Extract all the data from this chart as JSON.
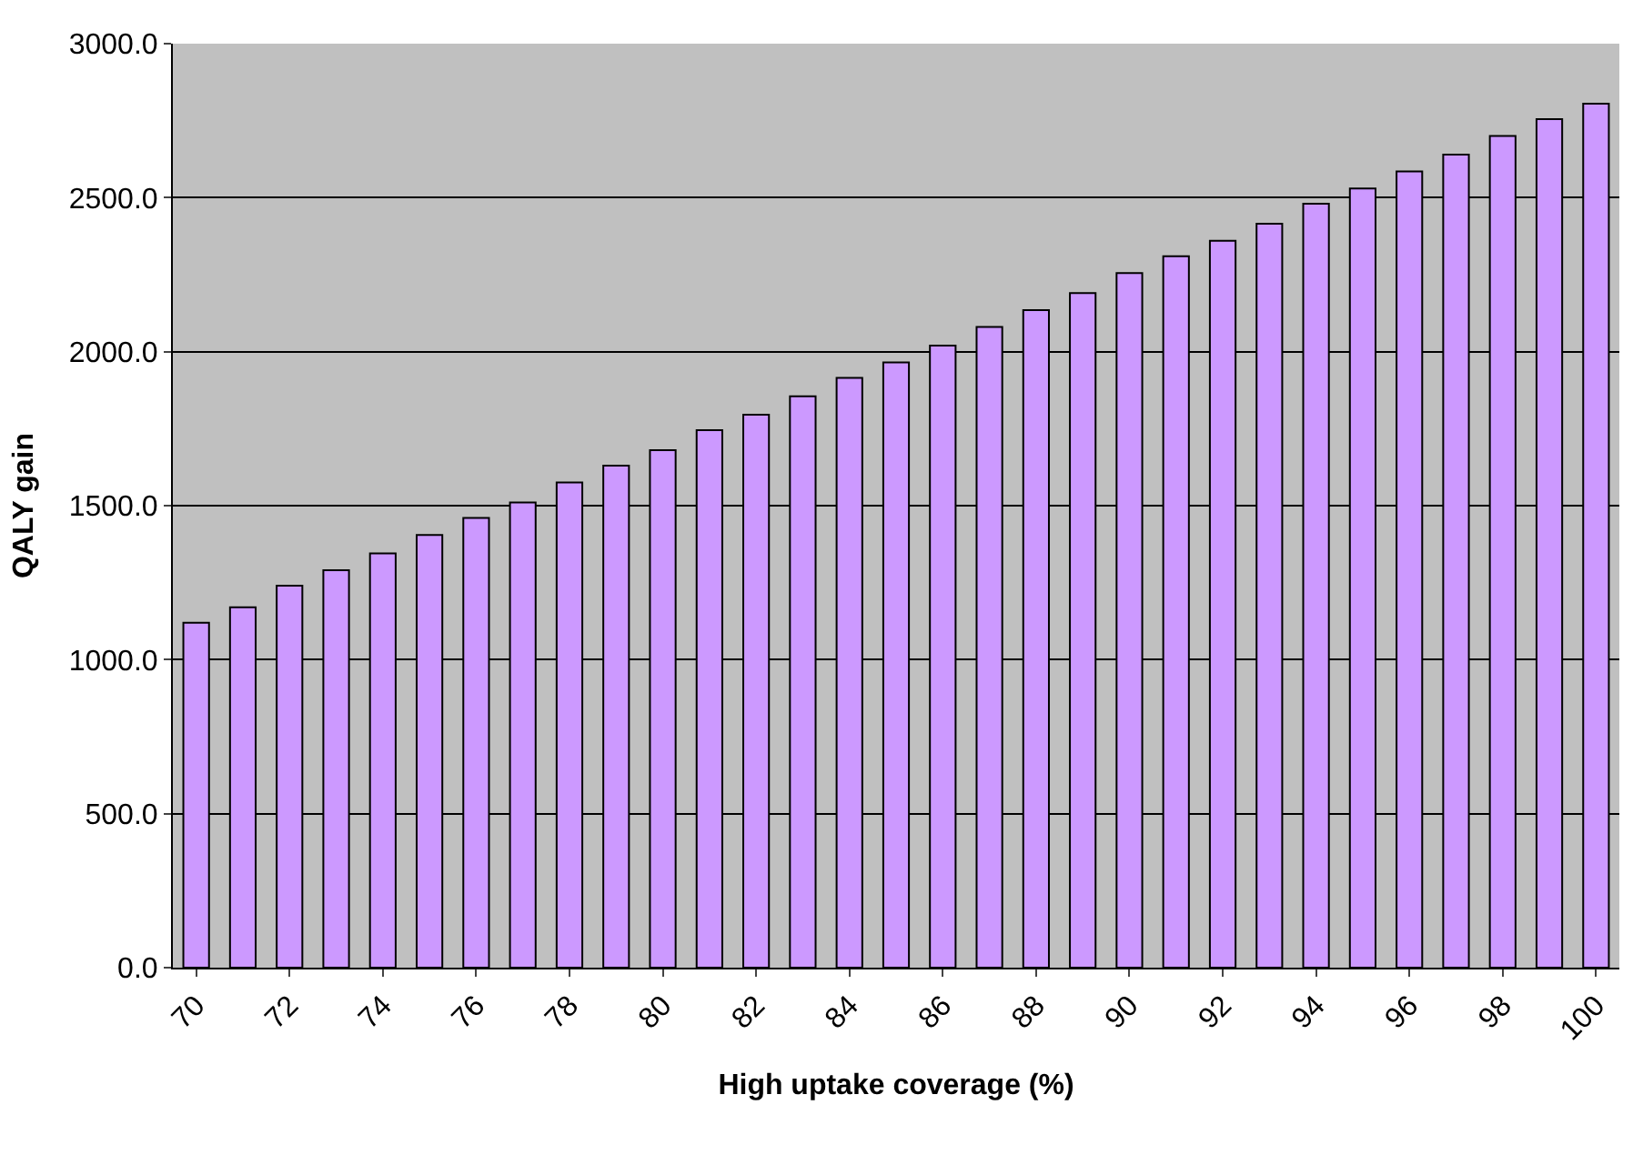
{
  "chart_data": {
    "type": "bar",
    "xlabel": "High uptake coverage (%)",
    "ylabel": "QALY gain",
    "categories": [
      "70",
      null,
      "72",
      null,
      "74",
      null,
      "76",
      null,
      "78",
      null,
      "80",
      null,
      "82",
      null,
      "84",
      null,
      "86",
      null,
      "88",
      null,
      "90",
      null,
      "92",
      null,
      "94",
      null,
      "96",
      null,
      "98",
      null,
      "100"
    ],
    "values": [
      1120,
      1170,
      1240,
      1290,
      1345,
      1405,
      1460,
      1510,
      1575,
      1630,
      1680,
      1745,
      1795,
      1855,
      1915,
      1965,
      2020,
      2080,
      2135,
      2190,
      2255,
      2310,
      2360,
      2415,
      2480,
      2530,
      2585,
      2640,
      2700,
      2755,
      2805
    ],
    "color": "#cc99ff",
    "ylim": [
      0,
      3000
    ],
    "yticks": [
      {
        "value": 0,
        "label": "0.0"
      },
      {
        "value": 500,
        "label": "500.0"
      },
      {
        "value": 1000,
        "label": "1000.0"
      },
      {
        "value": 1500,
        "label": "1500.0"
      },
      {
        "value": 2000,
        "label": "2000.0"
      },
      {
        "value": 2500,
        "label": "2500.0"
      },
      {
        "value": 3000,
        "label": "3000.0"
      }
    ],
    "grid": "y"
  }
}
